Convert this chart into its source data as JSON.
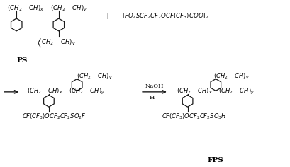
{
  "bg_color": "#ffffff",
  "line_color": "#1a1a1a",
  "text_color": "#000000",
  "fig_width": 4.09,
  "fig_height": 2.36,
  "dpi": 100,
  "top_chain": "-(CH$_2$-CH)$_x$-(CH$_2$-CH)$_y$",
  "reagent": "[FO$_2$SCF$_2$CF$_2$OCF(CF$_3$)COO]$_2$",
  "pendant_top": "-(CH$_2$-CH)$_y$",
  "backbone_int": "-(CH$_2$-CH)$_x$-(CH$_2$-CH)$_y$",
  "sub_int": "CF(CF$_3$)OCF$_2$CF$_2$SO$_2$F",
  "sub_prod": "CF(CF$_3$)OCF$_2$CF$_2$SO$_3$H",
  "ps_label": "PS",
  "fps_label": "FPS",
  "naoh": "NaOH",
  "hplus": "H$^+$"
}
